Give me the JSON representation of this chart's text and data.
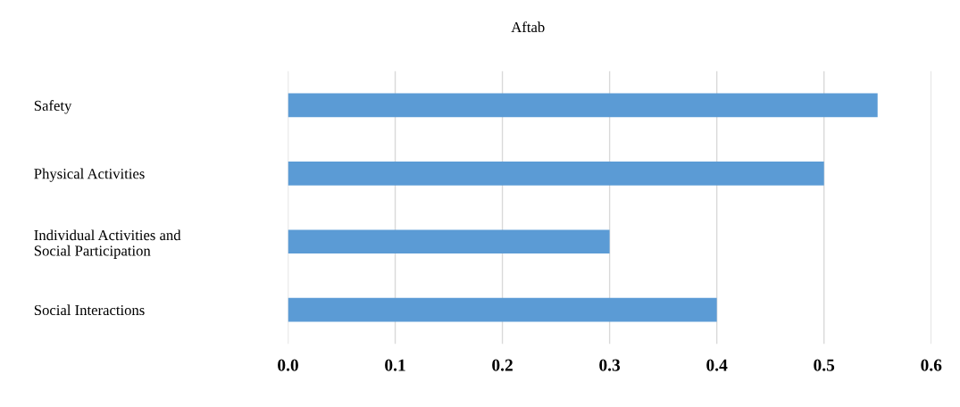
{
  "chart_data": {
    "type": "bar",
    "orientation": "horizontal",
    "title": "Aftab",
    "categories": [
      "Safety",
      "Physical Activities",
      "Individual Activities and\nSocial Participation",
      "Social Interactions"
    ],
    "values": [
      0.55,
      0.5,
      0.3,
      0.4
    ],
    "color": "#5b9bd5",
    "xlim": [
      0,
      0.6
    ],
    "xticks": [
      {
        "value": 0,
        "label": "0.0"
      },
      {
        "value": 0.1,
        "label": "0.1"
      },
      {
        "value": 0.2,
        "label": "0.2"
      },
      {
        "value": 0.3,
        "label": "0.3"
      },
      {
        "value": 0.4,
        "label": "0.4"
      },
      {
        "value": 0.5,
        "label": "0.5"
      },
      {
        "value": 0.6,
        "label": "0.6"
      }
    ],
    "grid": "x",
    "legend": false
  }
}
